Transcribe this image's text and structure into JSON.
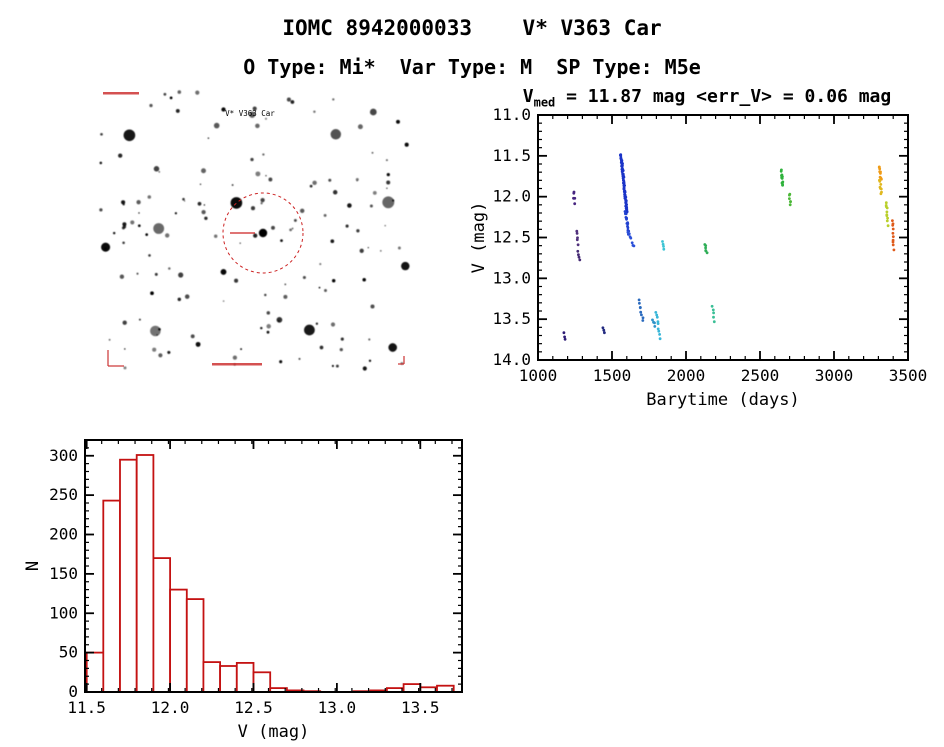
{
  "page": {
    "title": "IOMC 8942000033    V* V363 Car",
    "subtitle": "O Type: Mi*  Var Type: M  SP Type: M5e"
  },
  "finding_chart": {
    "star_label": "V* V363 Car",
    "marker_color": "#cc2222"
  },
  "light_curve": {
    "title_prefix": "V",
    "title_sub": "med",
    "title_rest": " = 11.87 mag <err_V> = 0.06 mag"
  },
  "chart_data": [
    {
      "type": "scatter",
      "title": "V_med = 11.87 mag <err_V> = 0.06 mag",
      "xlabel": "Barytime (days)",
      "ylabel": "V (mag)",
      "xlim": [
        1000,
        3500
      ],
      "ylim": [
        14.0,
        11.0
      ],
      "x_ticks": [
        "1000",
        "1500",
        "2000",
        "2500",
        "3000",
        "3500"
      ],
      "y_ticks": [
        "11.0",
        "11.5",
        "12.0",
        "12.5",
        "13.0",
        "13.5",
        "14.0"
      ],
      "x_minor": 100,
      "y_minor": 0.1,
      "grid": false,
      "clusters": [
        {
          "t0": 1175,
          "t1": 1185,
          "v0": 13.67,
          "v1": 13.73,
          "n": 3,
          "color": "#2d1b75"
        },
        {
          "t0": 1240,
          "t1": 1248,
          "v0": 11.94,
          "v1": 12.07,
          "n": 5,
          "color": "#472580"
        },
        {
          "t0": 1262,
          "t1": 1270,
          "v0": 12.43,
          "v1": 12.58,
          "n": 5,
          "color": "#50307c"
        },
        {
          "t0": 1272,
          "t1": 1280,
          "v0": 12.67,
          "v1": 12.79,
          "n": 4,
          "color": "#452a74"
        },
        {
          "t0": 1438,
          "t1": 1446,
          "v0": 13.59,
          "v1": 13.66,
          "n": 3,
          "color": "#232a80"
        },
        {
          "t0": 1560,
          "t1": 1600,
          "v0": 11.48,
          "v1": 12.18,
          "n": 70,
          "color": "#1b34c8"
        },
        {
          "t0": 1592,
          "t1": 1615,
          "v0": 12.18,
          "v1": 12.45,
          "n": 14,
          "color": "#2141d0"
        },
        {
          "t0": 1610,
          "t1": 1650,
          "v0": 12.42,
          "v1": 12.62,
          "n": 7,
          "color": "#2a4fd8"
        },
        {
          "t0": 1680,
          "t1": 1710,
          "v0": 13.28,
          "v1": 13.5,
          "n": 8,
          "color": "#2a6abe"
        },
        {
          "t0": 1775,
          "t1": 1790,
          "v0": 13.5,
          "v1": 13.58,
          "n": 4,
          "color": "#2f93c8"
        },
        {
          "t0": 1795,
          "t1": 1825,
          "v0": 13.4,
          "v1": 13.74,
          "n": 9,
          "color": "#38b6d8"
        },
        {
          "t0": 1840,
          "t1": 1850,
          "v0": 12.56,
          "v1": 12.65,
          "n": 4,
          "color": "#3cc4d4"
        },
        {
          "t0": 2130,
          "t1": 2140,
          "v0": 12.59,
          "v1": 12.69,
          "n": 6,
          "color": "#2fae57"
        },
        {
          "t0": 2180,
          "t1": 2190,
          "v0": 13.36,
          "v1": 13.52,
          "n": 5,
          "color": "#3abf96"
        },
        {
          "t0": 2645,
          "t1": 2655,
          "v0": 11.69,
          "v1": 11.87,
          "n": 12,
          "color": "#2fb23c"
        },
        {
          "t0": 2698,
          "t1": 2708,
          "v0": 11.97,
          "v1": 12.1,
          "n": 6,
          "color": "#4cb838"
        },
        {
          "t0": 3308,
          "t1": 3318,
          "v0": 11.64,
          "v1": 11.8,
          "n": 10,
          "color": "#ef9b16"
        },
        {
          "t0": 3310,
          "t1": 3320,
          "v0": 11.8,
          "v1": 11.96,
          "n": 8,
          "color": "#e0b81f"
        },
        {
          "t0": 3355,
          "t1": 3363,
          "v0": 12.06,
          "v1": 12.34,
          "n": 10,
          "color": "#b9cf2b"
        },
        {
          "t0": 3395,
          "t1": 3403,
          "v0": 12.28,
          "v1": 12.64,
          "n": 10,
          "color": "#df5a1a"
        }
      ]
    },
    {
      "type": "bar",
      "title": "",
      "xlabel": "V (mag)",
      "ylabel": "N",
      "xlim": [
        11.49,
        13.75
      ],
      "ylim": [
        0,
        320
      ],
      "x_ticks": [
        "11.5",
        "12.0",
        "12.5",
        "13.0",
        "13.5"
      ],
      "y_ticks": [
        "0",
        "50",
        "100",
        "150",
        "200",
        "250",
        "300"
      ],
      "x_minor": 0.1,
      "y_minor": 10,
      "grid": false,
      "bin_start": 11.5,
      "bin_width": 0.1,
      "values": [
        50,
        243,
        295,
        301,
        170,
        130,
        118,
        38,
        33,
        37,
        25,
        5,
        2,
        1,
        0,
        0,
        1,
        2,
        5,
        10,
        6,
        8
      ],
      "bar_color": "#c41212"
    }
  ]
}
